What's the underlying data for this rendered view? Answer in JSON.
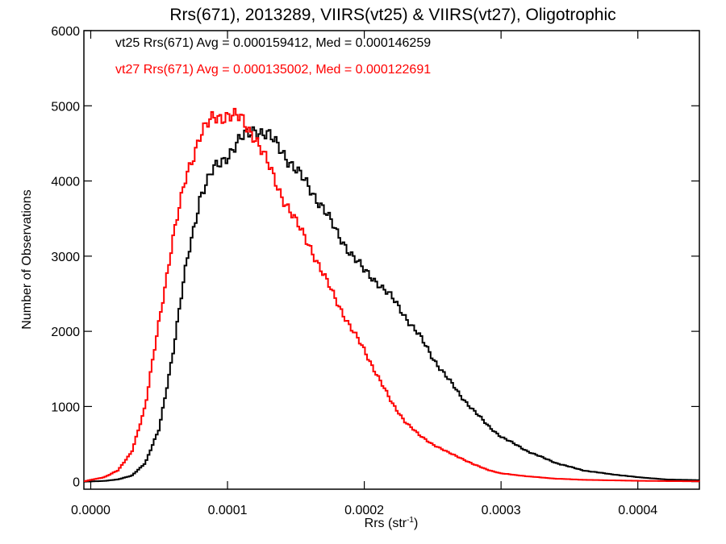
{
  "chart_data": {
    "type": "histogram",
    "title": "Rrs(671), 2013289, VIIRS(vt25) & VIIRS(vt27), Oligotrophic",
    "xlabel_main": "Rrs (str",
    "xlabel_sup": "-1",
    "xlabel_end": ")",
    "ylabel": "Number of Observations",
    "xlim": [
      -5e-06,
      0.000445
    ],
    "ylim": [
      -100,
      6000
    ],
    "x_ticks": [
      0.0,
      0.0001,
      0.0002,
      0.0003,
      0.0004
    ],
    "x_tick_labels": [
      "0.0000",
      "0.0001",
      "0.0002",
      "0.0003",
      "0.0004"
    ],
    "y_ticks": [
      0,
      1000,
      2000,
      3000,
      4000,
      5000,
      6000
    ],
    "y_tick_labels": [
      "0",
      "1000",
      "2000",
      "3000",
      "4000",
      "5000",
      "6000"
    ],
    "grid": false,
    "legend_position": "top-left",
    "series": [
      {
        "label": "vt25 Rrs(671) Avg = 0.000159412, Med = 0.000146259",
        "color": "#000000",
        "x": [
          -5e-06,
          1e-05,
          2e-05,
          3e-05,
          4e-05,
          5e-05,
          6e-05,
          7e-05,
          8e-05,
          9e-05,
          0.0001,
          0.00011,
          0.00012,
          0.00013,
          0.00014,
          0.00015,
          0.00016,
          0.00017,
          0.00018,
          0.00019,
          0.0002,
          0.00021,
          0.00022,
          0.00023,
          0.00024,
          0.00025,
          0.00026,
          0.00027,
          0.00028,
          0.00029,
          0.0003,
          0.00032,
          0.00034,
          0.00036,
          0.00038,
          0.0004,
          0.00042,
          0.000445
        ],
        "y": [
          0,
          10,
          30,
          80,
          250,
          700,
          1700,
          2900,
          3800,
          4150,
          4350,
          4550,
          4700,
          4600,
          4400,
          4150,
          3900,
          3650,
          3300,
          3050,
          2800,
          2650,
          2450,
          2200,
          1950,
          1650,
          1400,
          1150,
          950,
          750,
          600,
          400,
          250,
          150,
          100,
          60,
          30,
          20
        ]
      },
      {
        "label": "vt27 Rrs(671) Avg = 0.000135002, Med = 0.000122691",
        "color": "#ff0000",
        "x": [
          -5e-06,
          1e-05,
          2e-05,
          3e-05,
          4e-05,
          5e-05,
          6e-05,
          7e-05,
          8e-05,
          9e-05,
          0.0001,
          0.00011,
          0.00012,
          0.00013,
          0.00014,
          0.00015,
          0.00016,
          0.00017,
          0.00018,
          0.00019,
          0.0002,
          0.00021,
          0.00022,
          0.00023,
          0.00024,
          0.00025,
          0.00026,
          0.00027,
          0.00028,
          0.00029,
          0.0003,
          0.00032,
          0.00034,
          0.00036,
          0.00038,
          0.0004,
          0.00042,
          0.000445
        ],
        "y": [
          5,
          60,
          150,
          400,
          1000,
          2150,
          3200,
          4100,
          4600,
          4850,
          4880,
          4820,
          4600,
          4200,
          3800,
          3450,
          3150,
          2750,
          2400,
          2050,
          1750,
          1400,
          1050,
          800,
          620,
          500,
          400,
          320,
          230,
          160,
          110,
          70,
          40,
          25,
          18,
          12,
          8,
          5
        ]
      }
    ]
  }
}
